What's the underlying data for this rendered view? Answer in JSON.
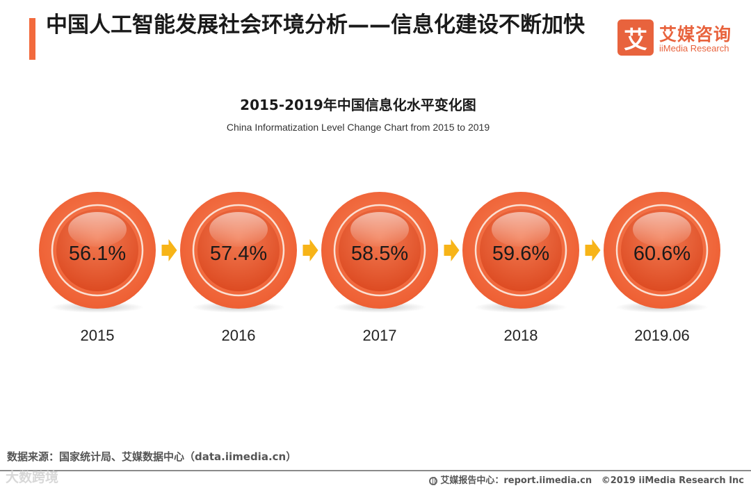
{
  "header": {
    "title": "中国人工智能发展社会环境分析——信息化建设不断加快"
  },
  "logo": {
    "mark": "艾",
    "name_cn": "艾媒咨询",
    "name_en": "iiMedia Research"
  },
  "colors": {
    "accent": "#f26a3d",
    "circle_outer": "#f26a3d",
    "circle_inner": "#e85a30",
    "arrow": "#f7b418"
  },
  "chart_data": {
    "type": "bubble-timeline",
    "title": "2015-2019年中国信息化水平变化图",
    "subtitle": "China Informatization Level Change Chart from 2015 to 2019",
    "categories": [
      "2015",
      "2016",
      "2017",
      "2018",
      "2019.06"
    ],
    "values": [
      56.1,
      57.4,
      58.5,
      59.6,
      60.6
    ],
    "value_labels": [
      "56.1%",
      "57.4%",
      "58.5%",
      "59.6%",
      "60.6%"
    ],
    "unit": "%"
  },
  "footer": {
    "source": "数据来源：国家统计局、艾媒数据中心（data.iimedia.cn）",
    "watermark": "大数跨境",
    "report": "艾媒报告中心：report.iimedia.cn",
    "copyright": "©2019  iiMedia Research  Inc"
  }
}
